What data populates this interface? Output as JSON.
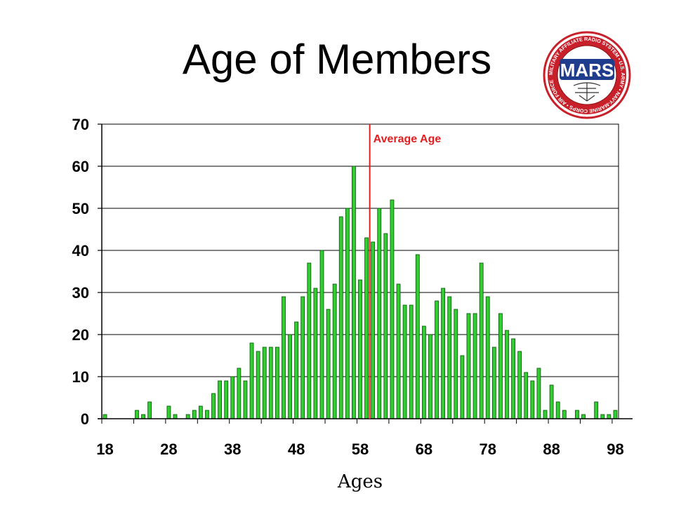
{
  "slide": {
    "title": "Age of Members"
  },
  "logo": {
    "text": "MARS",
    "ring_text": "MILITARY AFFILIATE RADIO SYSTEM • U.S. ARMY • NAVY-MARINE CORPS • AIR FORCE",
    "colors": {
      "ring": "#c8202a",
      "inner": "#1f3d8c",
      "text": "#ffffff"
    }
  },
  "chart_data": {
    "type": "bar",
    "xlabel": "Ages",
    "ylabel": "",
    "xlim": [
      18,
      98
    ],
    "ylim": [
      0,
      70
    ],
    "yticks": [
      0,
      10,
      20,
      30,
      40,
      50,
      60,
      70
    ],
    "xticks": [
      18,
      28,
      38,
      48,
      58,
      68,
      78,
      88,
      98
    ],
    "grid": true,
    "bar_color": "#33cc33",
    "bar_edge_color": "#005500",
    "annotation": {
      "label": "Average Age",
      "x": 59.5,
      "color": "#e02020"
    },
    "x": [
      18,
      19,
      20,
      21,
      22,
      23,
      24,
      25,
      26,
      27,
      28,
      29,
      30,
      31,
      32,
      33,
      34,
      35,
      36,
      37,
      38,
      39,
      40,
      41,
      42,
      43,
      44,
      45,
      46,
      47,
      48,
      49,
      50,
      51,
      52,
      53,
      54,
      55,
      56,
      57,
      58,
      59,
      60,
      61,
      62,
      63,
      64,
      65,
      66,
      67,
      68,
      69,
      70,
      71,
      72,
      73,
      74,
      75,
      76,
      77,
      78,
      79,
      80,
      81,
      82,
      83,
      84,
      85,
      86,
      87,
      88,
      89,
      90,
      91,
      92,
      93,
      94,
      95,
      96,
      97,
      98
    ],
    "values": [
      1,
      0,
      0,
      0,
      0,
      2,
      1,
      4,
      0,
      0,
      3,
      1,
      0,
      1,
      2,
      3,
      2,
      6,
      9,
      9,
      10,
      12,
      9,
      18,
      16,
      17,
      17,
      17,
      29,
      20,
      23,
      29,
      37,
      31,
      40,
      26,
      32,
      48,
      50,
      60,
      33,
      43,
      42,
      50,
      44,
      52,
      32,
      27,
      27,
      39,
      22,
      20,
      28,
      31,
      29,
      26,
      15,
      25,
      25,
      37,
      29,
      17,
      25,
      21,
      19,
      16,
      11,
      9,
      12,
      2,
      8,
      4,
      2,
      0,
      2,
      1,
      0,
      4,
      1,
      1,
      2
    ]
  }
}
